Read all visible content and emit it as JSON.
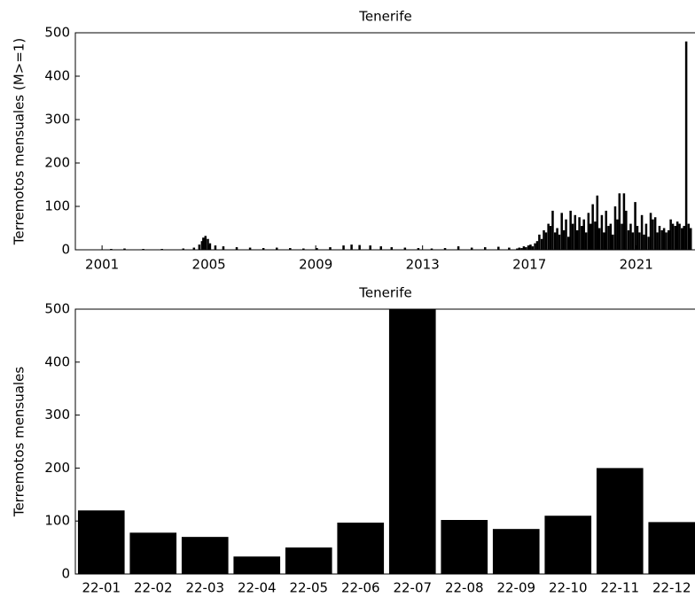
{
  "chart_data": [
    {
      "type": "bar",
      "title": "Tenerife",
      "y_label": "Terremotos mensuales (M>=1)",
      "color": "#000000",
      "grid": false,
      "xlim": [
        2000,
        2023.2
      ],
      "xticks": [
        2001,
        2005,
        2009,
        2013,
        2017,
        2021
      ],
      "ylim": [
        0,
        500
      ],
      "yticks": [
        0,
        100,
        200,
        300,
        400,
        500
      ],
      "x": [
        2001.3,
        2001.8,
        2002.5,
        2003.2,
        2004.0,
        2004.4,
        2004.6,
        2004.7,
        2004.75,
        2004.83,
        2004.92,
        2005.0,
        2005.2,
        2005.5,
        2006.0,
        2006.5,
        2007.0,
        2007.5,
        2008.0,
        2008.5,
        2009.0,
        2009.5,
        2010.0,
        2010.3,
        2010.6,
        2011.0,
        2011.4,
        2011.8,
        2012.3,
        2012.8,
        2013.3,
        2013.8,
        2014.3,
        2014.8,
        2015.3,
        2015.8,
        2016.2,
        2016.5,
        2016.58,
        2016.67,
        2016.75,
        2016.83,
        2016.92,
        2017.0,
        2017.08,
        2017.17,
        2017.25,
        2017.33,
        2017.42,
        2017.5,
        2017.58,
        2017.67,
        2017.75,
        2017.83,
        2017.92,
        2018.0,
        2018.08,
        2018.17,
        2018.25,
        2018.33,
        2018.42,
        2018.5,
        2018.58,
        2018.67,
        2018.75,
        2018.83,
        2018.92,
        2019.0,
        2019.08,
        2019.17,
        2019.25,
        2019.33,
        2019.42,
        2019.5,
        2019.58,
        2019.67,
        2019.75,
        2019.83,
        2019.92,
        2020.0,
        2020.08,
        2020.17,
        2020.25,
        2020.33,
        2020.42,
        2020.5,
        2020.58,
        2020.67,
        2020.75,
        2020.83,
        2020.92,
        2021.0,
        2021.08,
        2021.17,
        2021.25,
        2021.33,
        2021.42,
        2021.5,
        2021.58,
        2021.67,
        2021.75,
        2021.83,
        2021.92,
        2022.0,
        2022.08,
        2022.17,
        2022.25,
        2022.33,
        2022.42,
        2022.5,
        2022.58,
        2022.67,
        2022.75,
        2022.83,
        2022.92,
        2023.0
      ],
      "values": [
        2,
        3,
        2,
        2,
        3,
        5,
        12,
        20,
        28,
        32,
        25,
        15,
        10,
        8,
        6,
        5,
        4,
        5,
        4,
        3,
        4,
        6,
        10,
        12,
        11,
        10,
        8,
        6,
        5,
        4,
        3,
        4,
        8,
        5,
        6,
        7,
        5,
        3,
        5,
        4,
        8,
        6,
        10,
        12,
        8,
        15,
        20,
        35,
        25,
        45,
        40,
        60,
        55,
        90,
        40,
        50,
        35,
        85,
        45,
        70,
        30,
        90,
        60,
        80,
        45,
        75,
        55,
        70,
        40,
        85,
        60,
        105,
        65,
        125,
        50,
        80,
        40,
        90,
        55,
        60,
        35,
        100,
        70,
        130,
        60,
        130,
        90,
        45,
        60,
        40,
        110,
        55,
        40,
        80,
        35,
        60,
        30,
        85,
        70,
        75,
        40,
        55,
        45,
        50,
        40,
        45,
        70,
        60,
        55,
        65,
        60,
        50,
        55,
        480,
        60,
        50
      ]
    },
    {
      "type": "bar",
      "title": "Tenerife",
      "y_label": "Terremotos mensuales",
      "color": "#000000",
      "grid": false,
      "ylim": [
        0,
        500
      ],
      "yticks": [
        0,
        100,
        200,
        300,
        400,
        500
      ],
      "categories": [
        "22-01",
        "22-02",
        "22-03",
        "22-04",
        "22-05",
        "22-06",
        "22-07",
        "22-08",
        "22-09",
        "22-10",
        "22-11",
        "22-12"
      ],
      "values": [
        120,
        78,
        70,
        33,
        50,
        97,
        500,
        102,
        85,
        110,
        200,
        98
      ]
    }
  ]
}
